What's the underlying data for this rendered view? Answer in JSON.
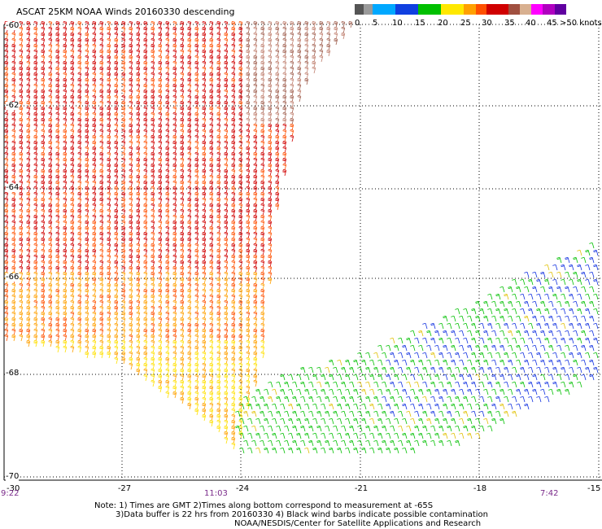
{
  "title": "ASCAT 25KM NOAA Winds 20160330 descending",
  "legend": {
    "swatches": [
      "#555555",
      "#9a9a9a",
      "#00a8ff",
      "#1040e0",
      "#00c000",
      "#ffe800",
      "#ffa000",
      "#ff5000",
      "#d00000",
      "#a05040",
      "#d8b090",
      "#ff00ff",
      "#b000c0",
      "#6000a0"
    ],
    "labels": [
      "0",
      "5",
      "10",
      "15",
      "20",
      "25",
      "30",
      "35",
      "40",
      "45",
      ">50 knots"
    ]
  },
  "axes": {
    "lat_labels": [
      "-60",
      "-62",
      "-64",
      "-66",
      "-68",
      "-70"
    ],
    "lon_labels": [
      "-30",
      "-27",
      "-24",
      "-21",
      "-18",
      "-15"
    ]
  },
  "time_labels": [
    "9:22",
    "11:03",
    "7:42"
  ],
  "notes": [
    "Note: 1) Times are GMT 2)Times along bottom correspond to measurement at -65S",
    "3)Data buffer is 22 hrs from 20160330 4) Black wind barbs indicate possible contamination",
    "NOAA/NESDIS/Center for Satellite Applications and Research"
  ],
  "swaths": [
    {
      "name": "western-swath",
      "wind_range_knots": [
        20,
        40
      ]
    },
    {
      "name": "eastern-swath",
      "wind_range_knots": [
        10,
        25
      ]
    }
  ]
}
